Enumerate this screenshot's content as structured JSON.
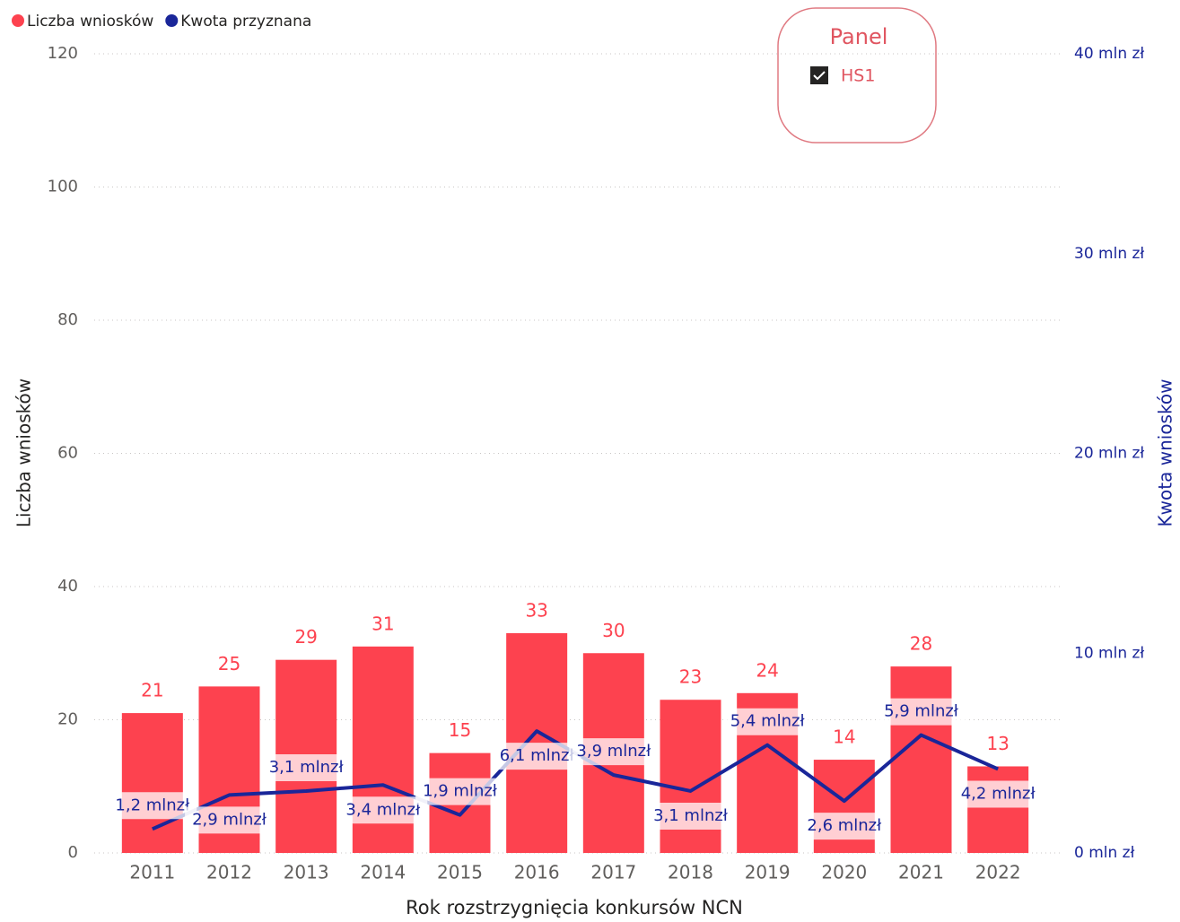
{
  "chart_data": {
    "type": "bar_line",
    "x_label": "Rok rozstrzygnięcia konkursów NCN",
    "y_label": "Liczba wniosków",
    "y2_label": "Kwota wniosków",
    "categories": [
      "2011",
      "2012",
      "2013",
      "2014",
      "2015",
      "2016",
      "2017",
      "2018",
      "2019",
      "2020",
      "2021",
      "2022"
    ],
    "series": [
      {
        "name": "Liczba wniosków",
        "color": "#fd424f",
        "type": "bar",
        "values": [
          21,
          25,
          29,
          31,
          15,
          33,
          30,
          23,
          24,
          14,
          28,
          13
        ]
      },
      {
        "name": "Kwota przyznana",
        "color": "#1a2699",
        "type": "line",
        "axis": "y2",
        "values": [
          1.2,
          2.9,
          3.1,
          3.4,
          1.9,
          6.1,
          3.9,
          3.1,
          5.4,
          2.6,
          5.9,
          4.2
        ],
        "value_labels": [
          "1,2 mlnzł",
          "2,9 mlnzł",
          "3,1 mlnzł",
          "3,4 mlnzł",
          "1,9 mlnzł",
          "6,1 mlnzł",
          "3,9 mlnzł",
          "3,1 mlnzł",
          "5,4 mlnzł",
          "2,6 mlnzł",
          "5,9 mlnzł",
          "4,2 mlnzł"
        ]
      }
    ],
    "ylim": [
      0,
      120
    ],
    "yticks": [
      0,
      20,
      40,
      60,
      80,
      100,
      120
    ],
    "y2lim": [
      0,
      40
    ],
    "y2ticks": [
      {
        "value": 0,
        "label": "0 mln zł"
      },
      {
        "value": 10,
        "label": "10 mln zł"
      },
      {
        "value": 20,
        "label": "20 mln zł"
      },
      {
        "value": 30,
        "label": "30 mln zł"
      },
      {
        "value": 40,
        "label": "40 mln zł"
      }
    ],
    "grid": true,
    "legend": "top-left"
  },
  "slicer": {
    "title": "Panel",
    "items": [
      "HS1"
    ]
  }
}
